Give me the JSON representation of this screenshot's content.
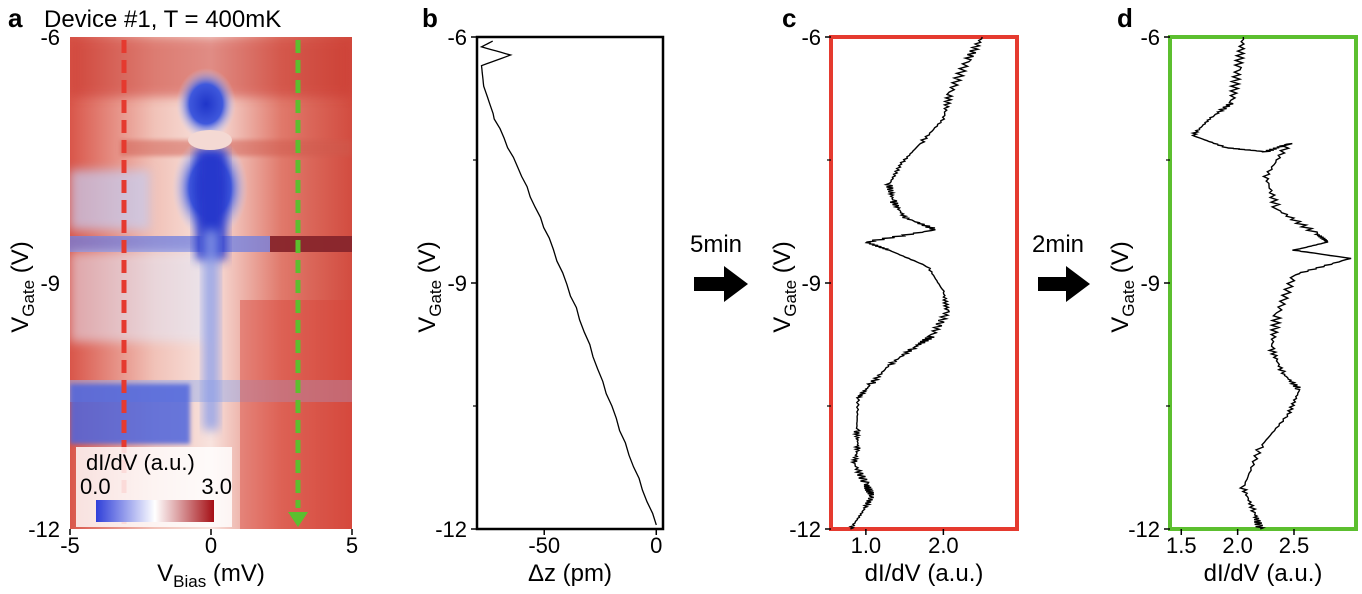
{
  "panels": {
    "a": {
      "label": "a",
      "title": "Device #1, T = 400mK"
    },
    "b": {
      "label": "b"
    },
    "c": {
      "label": "c"
    },
    "d": {
      "label": "d"
    }
  },
  "arrows": {
    "first": "5min",
    "second": "2min"
  },
  "colorbar": {
    "title": "dI/dV (a.u.)",
    "min_label": "0.0",
    "max_label": "3.0",
    "colors": [
      "#2f3fd9",
      "#ffffff",
      "#a50f15"
    ]
  },
  "colors": {
    "red_line": "#e53a2f",
    "green_line": "#5cbf2f",
    "trace": "#000000"
  },
  "chart_data": [
    {
      "panel": "a",
      "type": "heatmap",
      "title": "Device #1, T = 400mK",
      "xlabel": {
        "main": "V",
        "sub": "Bias",
        "unit": "(mV)"
      },
      "ylabel": {
        "main": "V",
        "sub": "Gate",
        "unit": "(V)"
      },
      "xlim": [
        -5,
        5
      ],
      "ylim": [
        -12,
        -6
      ],
      "xticks": [
        "-5",
        "0",
        "5"
      ],
      "yticks": [
        "-6",
        "-9",
        "-12"
      ],
      "colorbar": {
        "label": "dI/dV (a.u.)",
        "range": [
          0.0,
          3.0
        ]
      },
      "cut_lines": [
        {
          "x": -3.0,
          "color": "red",
          "style": "dashed"
        },
        {
          "x": 3.0,
          "color": "green",
          "style": "dashed-arrow"
        }
      ]
    },
    {
      "panel": "b",
      "type": "line",
      "xlabel": "Δz (pm)",
      "ylabel": {
        "main": "V",
        "sub": "Gate",
        "unit": "(V)"
      },
      "xlim": [
        -80,
        3
      ],
      "ylim": [
        -12,
        -6
      ],
      "xticks": [
        "-50",
        "0"
      ],
      "yticks": [
        "-6",
        "-9",
        "-12"
      ],
      "series": [
        {
          "x": [
            -73,
            -78,
            -65,
            -78,
            -77,
            -72,
            -60,
            -48,
            -36,
            -24,
            -12,
            0
          ],
          "y": [
            -6.05,
            -6.12,
            -6.22,
            -6.35,
            -6.6,
            -7.0,
            -7.7,
            -8.45,
            -9.3,
            -10.2,
            -11.1,
            -11.95
          ]
        }
      ]
    },
    {
      "panel": "c",
      "type": "line",
      "xlabel": "dI/dV (a.u.)",
      "ylabel": {
        "main": "V",
        "sub": "Gate",
        "unit": "(V)"
      },
      "xlim": [
        0.55,
        2.95
      ],
      "ylim": [
        -12,
        -6
      ],
      "xticks": [
        "1.0",
        "2.0"
      ],
      "yticks": [
        "-6",
        "-9",
        "-12"
      ],
      "series": [
        {
          "x": [
            2.5,
            2.3,
            2.08,
            2.0,
            1.7,
            1.45,
            1.3,
            1.35,
            1.5,
            1.9,
            1.0,
            1.3,
            1.8,
            2.0,
            2.05,
            1.85,
            1.6,
            1.3,
            1.05,
            0.9,
            0.88,
            0.9,
            0.85,
            1.0,
            1.08,
            0.95,
            0.8
          ],
          "y": [
            -6.0,
            -6.3,
            -6.7,
            -7.0,
            -7.3,
            -7.55,
            -7.8,
            -8.0,
            -8.2,
            -8.35,
            -8.5,
            -8.6,
            -8.8,
            -9.1,
            -9.35,
            -9.65,
            -9.8,
            -10.0,
            -10.25,
            -10.4,
            -10.8,
            -11.0,
            -11.2,
            -11.45,
            -11.6,
            -11.8,
            -12.0
          ]
        }
      ]
    },
    {
      "panel": "d",
      "type": "line",
      "xlabel": "dI/dV (a.u.)",
      "ylabel": {
        "main": "V",
        "sub": "Gate",
        "unit": "(V)"
      },
      "xlim": [
        1.4,
        3.05
      ],
      "ylim": [
        -12,
        -6
      ],
      "xticks": [
        "1.5",
        "2.0",
        "2.5"
      ],
      "yticks": [
        "-6",
        "-9",
        "-12"
      ],
      "series": [
        {
          "x": [
            2.05,
            2.0,
            1.95,
            1.75,
            1.6,
            1.9,
            2.25,
            2.45,
            2.25,
            2.35,
            2.7,
            2.8,
            2.5,
            3.0,
            2.5,
            2.35,
            2.3,
            2.4,
            2.55,
            2.45,
            2.2,
            2.05,
            2.15,
            2.2
          ],
          "y": [
            -6.0,
            -6.4,
            -6.8,
            -7.0,
            -7.2,
            -7.35,
            -7.4,
            -7.3,
            -7.7,
            -8.1,
            -8.4,
            -8.5,
            -8.6,
            -8.7,
            -8.9,
            -9.4,
            -9.8,
            -10.1,
            -10.3,
            -10.6,
            -11.0,
            -11.5,
            -11.8,
            -12.0
          ]
        }
      ]
    }
  ]
}
